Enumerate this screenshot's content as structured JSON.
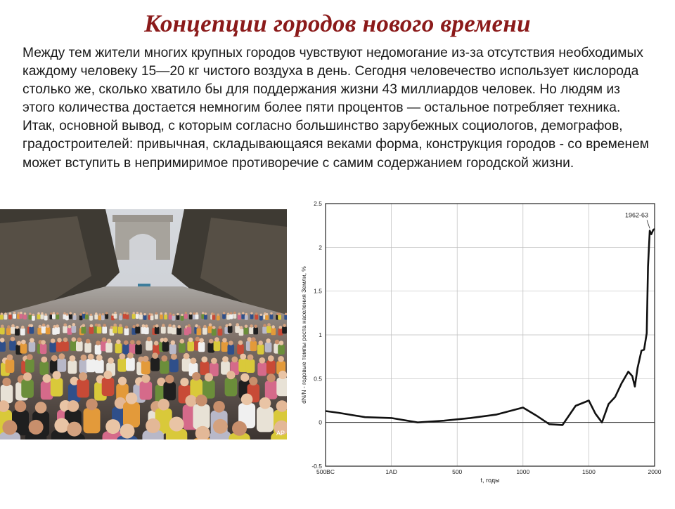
{
  "slide": {
    "title": "Концепции городов нового времени",
    "paragraph": "Между тем жители многих крупных городов чувствуют недомогание из-за отсутствия необходимых каждому человеку 15—20 кг чистого воздуха в день. Сегодня человечество использует кислорода столько же, сколько хватило бы для поддержания жизни 43 миллиардов человек. Но людям из этого количества достается немногим более пяти процентов — остальное потребляет техника. Итак, основной вывод, с которым согласно большинство зарубежных социологов, демографов, градостроителей: привычная, складывающаяся веками форма, конструкция городов - со временем может вступить в непримиримое противоречие с самим содержанием городской жизни.",
    "photo_watermark": "AP"
  },
  "chart_data": {
    "type": "line",
    "title": "",
    "xlabel": "t, годы",
    "ylabel": "dN/N - годовые темпы роста населения Земли, %",
    "xlim": [
      -500,
      2000
    ],
    "ylim": [
      -0.5,
      2.5
    ],
    "x_ticks": [
      {
        "value": -500,
        "label": "500BC"
      },
      {
        "value": 0,
        "label": "1AD"
      },
      {
        "value": 500,
        "label": "500"
      },
      {
        "value": 1000,
        "label": "1000"
      },
      {
        "value": 1500,
        "label": "1500"
      },
      {
        "value": 2000,
        "label": "2000"
      }
    ],
    "y_ticks": [
      {
        "value": -0.5,
        "label": "-0.5"
      },
      {
        "value": 0,
        "label": "0"
      },
      {
        "value": 0.5,
        "label": "0.5"
      },
      {
        "value": 1,
        "label": "1"
      },
      {
        "value": 1.5,
        "label": "1.5"
      },
      {
        "value": 2,
        "label": "2"
      },
      {
        "value": 2.5,
        "label": "2.5"
      }
    ],
    "grid": true,
    "zero_line": true,
    "annotation": {
      "text": "1962-63",
      "x": 1963,
      "y": 2.2
    },
    "series": [
      {
        "name": "",
        "color": "#111111",
        "x": [
          -500,
          -400,
          -200,
          0,
          200,
          400,
          600,
          800,
          1000,
          1100,
          1200,
          1300,
          1400,
          1500,
          1550,
          1600,
          1650,
          1700,
          1750,
          1800,
          1830,
          1850,
          1870,
          1900,
          1920,
          1940,
          1950,
          1963,
          1975,
          1990,
          2000
        ],
        "y": [
          0.13,
          0.11,
          0.06,
          0.05,
          0.0,
          0.02,
          0.05,
          0.09,
          0.17,
          0.08,
          -0.02,
          -0.03,
          0.19,
          0.25,
          0.1,
          0.0,
          0.21,
          0.29,
          0.45,
          0.58,
          0.53,
          0.41,
          0.62,
          0.82,
          0.83,
          1.02,
          1.78,
          2.19,
          2.15,
          2.2,
          2.21
        ]
      }
    ]
  },
  "colors": {
    "title": "#8b1a1a",
    "text": "#1a1a1a",
    "line": "#111111",
    "grid": "#bdbdbd"
  }
}
